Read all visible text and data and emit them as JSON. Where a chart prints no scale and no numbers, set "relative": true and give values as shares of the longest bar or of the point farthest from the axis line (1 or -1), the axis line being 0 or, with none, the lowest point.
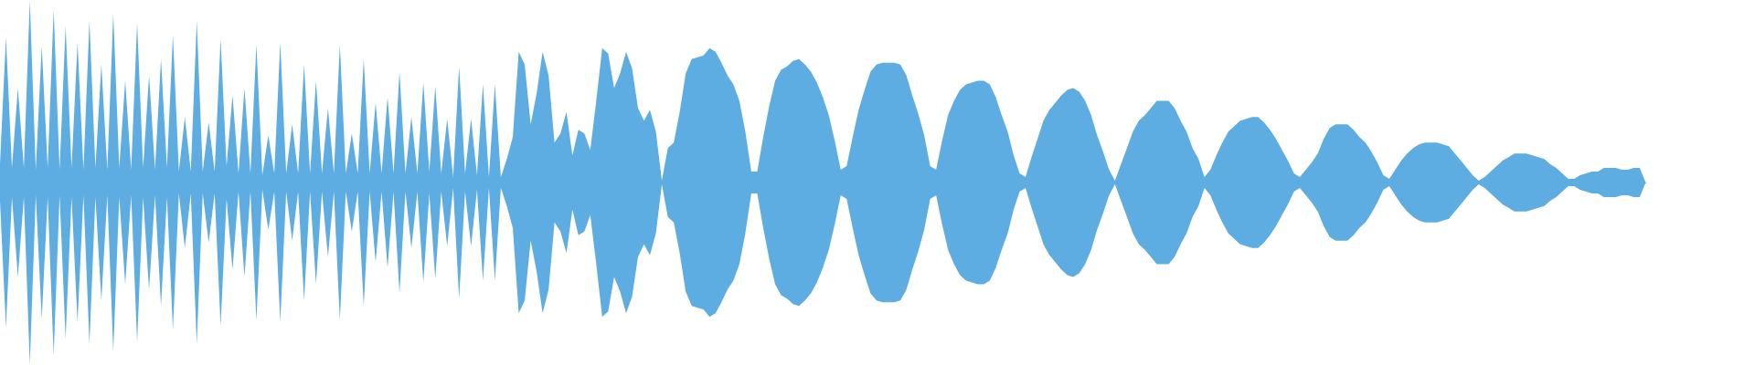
{
  "chart_data": {
    "type": "area",
    "relative": true,
    "tick_labels": false,
    "categories": [
      null,
      null,
      null,
      null,
      null,
      null,
      null,
      null,
      null,
      null,
      null,
      null,
      null,
      null,
      null,
      null,
      null,
      null,
      null,
      null,
      null,
      null,
      null,
      null,
      null,
      null,
      null,
      null,
      null,
      null,
      null,
      null,
      null,
      null,
      null,
      null,
      null,
      null,
      null,
      null,
      null,
      null,
      null,
      null,
      null,
      null,
      null,
      null,
      null,
      null,
      null,
      null,
      null,
      null,
      null,
      null,
      null,
      null,
      null,
      null,
      null,
      null,
      null,
      null,
      null,
      null,
      null,
      null,
      null,
      null,
      null,
      null,
      null,
      null,
      null,
      null,
      null,
      null,
      null,
      null,
      null,
      null,
      null,
      null,
      null,
      null,
      null,
      null,
      null,
      null,
      null,
      null,
      null,
      null,
      null,
      null,
      null,
      null,
      null,
      null,
      null,
      null,
      null,
      null,
      null,
      null,
      null,
      null,
      null,
      null,
      null,
      null,
      null,
      null,
      null,
      null,
      null,
      null,
      null,
      null,
      null,
      null,
      null,
      null,
      null,
      null,
      null,
      null,
      null,
      null,
      null,
      null,
      null,
      null,
      null,
      null,
      null,
      null,
      null,
      null,
      null,
      null,
      null,
      null,
      null,
      null,
      null,
      null,
      null,
      null,
      null,
      null,
      null,
      null,
      null,
      null,
      null,
      null,
      null,
      null,
      null,
      null,
      null,
      null,
      null,
      null,
      null,
      null,
      null,
      null,
      null,
      null,
      null,
      null,
      null,
      null,
      null,
      null,
      null,
      null,
      null,
      null,
      null,
      null,
      null,
      null,
      null,
      null,
      null,
      null,
      null,
      null,
      null,
      null,
      null,
      null,
      null,
      null,
      null,
      null,
      null,
      null,
      null,
      null,
      null,
      null,
      null,
      null,
      null,
      null,
      null,
      null,
      null,
      null,
      null,
      null,
      null,
      null,
      null,
      null,
      null,
      null,
      null,
      null,
      null,
      null,
      null,
      null,
      null,
      null,
      null,
      null,
      null,
      null,
      null,
      null,
      null,
      null,
      null,
      null,
      null,
      null,
      null,
      null,
      null,
      null,
      null,
      null,
      null,
      null,
      null,
      null,
      null,
      null,
      null,
      null,
      null,
      null,
      null,
      null,
      null,
      null,
      null,
      null,
      null,
      null,
      null,
      null,
      null,
      null,
      null,
      null,
      null,
      null,
      null,
      null,
      null
    ],
    "series": [
      {
        "color": "#5dade2",
        "values": [
          0.1,
          0.8,
          0.08,
          0.52,
          0.08,
          1.0,
          0.07,
          0.75,
          0.08,
          0.95,
          0.07,
          0.86,
          0.08,
          0.77,
          0.07,
          0.89,
          0.08,
          0.65,
          0.07,
          0.93,
          0.08,
          0.56,
          0.07,
          0.88,
          0.08,
          0.59,
          0.07,
          0.68,
          0.08,
          0.81,
          0.06,
          0.36,
          0.06,
          0.89,
          0.06,
          0.33,
          0.06,
          0.79,
          0.09,
          0.48,
          0.05,
          0.52,
          0.05,
          0.76,
          0.04,
          0.26,
          0.05,
          0.77,
          0.05,
          0.32,
          0.05,
          0.65,
          0.05,
          0.56,
          0.05,
          0.41,
          0.05,
          0.76,
          0.05,
          0.27,
          0.05,
          0.68,
          0.05,
          0.44,
          0.05,
          0.47,
          0.05,
          0.61,
          0.05,
          0.36,
          0.05,
          0.55,
          0.06,
          0.53,
          0.05,
          0.35,
          0.03,
          0.64,
          0.05,
          0.35,
          0.04,
          0.54,
          0.03,
          0.54,
          0.03,
          0.13,
          0.25,
          0.72,
          0.65,
          0.32,
          0.49,
          0.72,
          0.59,
          0.22,
          0.27,
          0.39,
          0.15,
          0.29,
          0.27,
          0.18,
          0.45,
          0.74,
          0.71,
          0.52,
          0.6,
          0.72,
          0.63,
          0.41,
          0.34,
          0.4,
          0.28,
          0.01,
          0.19,
          0.22,
          0.39,
          0.6,
          0.68,
          0.69,
          0.7,
          0.74,
          0.72,
          0.66,
          0.59,
          0.54,
          0.45,
          0.28,
          0.06,
          0.06,
          0.25,
          0.42,
          0.56,
          0.62,
          0.64,
          0.67,
          0.68,
          0.65,
          0.61,
          0.55,
          0.47,
          0.37,
          0.23,
          0.07,
          0.09,
          0.25,
          0.4,
          0.51,
          0.61,
          0.65,
          0.66,
          0.66,
          0.66,
          0.65,
          0.59,
          0.48,
          0.38,
          0.26,
          0.09,
          0.07,
          0.23,
          0.37,
          0.45,
          0.51,
          0.54,
          0.55,
          0.56,
          0.56,
          0.54,
          0.47,
          0.37,
          0.28,
          0.15,
          0.05,
          0.03,
          0.14,
          0.24,
          0.34,
          0.4,
          0.44,
          0.48,
          0.51,
          0.52,
          0.5,
          0.45,
          0.37,
          0.26,
          0.17,
          0.07,
          0.01,
          0.1,
          0.19,
          0.28,
          0.34,
          0.37,
          0.41,
          0.45,
          0.45,
          0.45,
          0.41,
          0.34,
          0.28,
          0.19,
          0.13,
          0.03,
          0.07,
          0.15,
          0.22,
          0.28,
          0.31,
          0.34,
          0.35,
          0.36,
          0.36,
          0.33,
          0.29,
          0.24,
          0.18,
          0.12,
          0.05,
          0.03,
          0.07,
          0.11,
          0.16,
          0.24,
          0.3,
          0.32,
          0.32,
          0.32,
          0.29,
          0.25,
          0.22,
          0.17,
          0.11,
          0.04,
          0.02,
          0.07,
          0.12,
          0.16,
          0.19,
          0.21,
          0.22,
          0.22,
          0.22,
          0.21,
          0.2,
          0.16,
          0.12,
          0.08,
          0.04,
          0.01,
          0.03,
          0.06,
          0.09,
          0.12,
          0.14,
          0.16,
          0.16,
          0.16,
          0.15,
          0.14,
          0.13,
          0.1,
          0.08,
          0.05,
          0.02,
          0.02,
          0.04,
          0.05,
          0.06,
          0.06,
          0.08,
          0.08,
          0.08,
          0.07,
          0.07,
          0.08,
          0.08,
          0
        ]
      },
      {
        "color": "#5dade2",
        "values": [
          -0.1,
          -0.8,
          -0.08,
          -0.52,
          -0.08,
          -1.0,
          -0.07,
          -0.75,
          -0.08,
          -0.95,
          -0.07,
          -0.86,
          -0.08,
          -0.77,
          -0.07,
          -0.89,
          -0.08,
          -0.65,
          -0.07,
          -0.93,
          -0.08,
          -0.56,
          -0.07,
          -0.88,
          -0.08,
          -0.59,
          -0.07,
          -0.68,
          -0.08,
          -0.81,
          -0.06,
          -0.36,
          -0.06,
          -0.89,
          -0.06,
          -0.33,
          -0.06,
          -0.79,
          -0.09,
          -0.48,
          -0.05,
          -0.52,
          -0.05,
          -0.76,
          -0.04,
          -0.26,
          -0.05,
          -0.77,
          -0.05,
          -0.32,
          -0.05,
          -0.65,
          -0.05,
          -0.56,
          -0.05,
          -0.41,
          -0.05,
          -0.76,
          -0.05,
          -0.27,
          -0.05,
          -0.68,
          -0.05,
          -0.44,
          -0.05,
          -0.47,
          -0.05,
          -0.61,
          -0.05,
          -0.36,
          -0.05,
          -0.55,
          -0.06,
          -0.53,
          -0.05,
          -0.35,
          -0.03,
          -0.64,
          -0.05,
          -0.35,
          -0.04,
          -0.54,
          -0.03,
          -0.54,
          -0.03,
          -0.13,
          -0.25,
          -0.72,
          -0.65,
          -0.32,
          -0.49,
          -0.72,
          -0.59,
          -0.22,
          -0.27,
          -0.39,
          -0.15,
          -0.29,
          -0.27,
          -0.18,
          -0.45,
          -0.74,
          -0.71,
          -0.52,
          -0.6,
          -0.72,
          -0.63,
          -0.41,
          -0.34,
          -0.4,
          -0.28,
          -0.01,
          -0.19,
          -0.22,
          -0.39,
          -0.6,
          -0.68,
          -0.69,
          -0.7,
          -0.74,
          -0.72,
          -0.66,
          -0.59,
          -0.54,
          -0.45,
          -0.28,
          -0.06,
          -0.06,
          -0.25,
          -0.42,
          -0.56,
          -0.62,
          -0.64,
          -0.67,
          -0.68,
          -0.65,
          -0.61,
          -0.55,
          -0.47,
          -0.37,
          -0.23,
          -0.07,
          -0.09,
          -0.25,
          -0.4,
          -0.51,
          -0.61,
          -0.65,
          -0.66,
          -0.66,
          -0.66,
          -0.65,
          -0.59,
          -0.48,
          -0.38,
          -0.26,
          -0.09,
          -0.07,
          -0.23,
          -0.37,
          -0.45,
          -0.51,
          -0.54,
          -0.55,
          -0.56,
          -0.56,
          -0.54,
          -0.47,
          -0.37,
          -0.28,
          -0.15,
          -0.05,
          -0.03,
          -0.14,
          -0.24,
          -0.34,
          -0.4,
          -0.44,
          -0.48,
          -0.51,
          -0.52,
          -0.5,
          -0.45,
          -0.37,
          -0.26,
          -0.17,
          -0.07,
          -0.01,
          -0.1,
          -0.19,
          -0.28,
          -0.34,
          -0.37,
          -0.41,
          -0.45,
          -0.45,
          -0.45,
          -0.41,
          -0.34,
          -0.28,
          -0.19,
          -0.13,
          -0.03,
          -0.07,
          -0.15,
          -0.22,
          -0.28,
          -0.31,
          -0.34,
          -0.35,
          -0.36,
          -0.36,
          -0.33,
          -0.29,
          -0.24,
          -0.18,
          -0.12,
          -0.05,
          -0.03,
          -0.07,
          -0.11,
          -0.16,
          -0.24,
          -0.3,
          -0.32,
          -0.32,
          -0.32,
          -0.29,
          -0.25,
          -0.22,
          -0.17,
          -0.11,
          -0.04,
          -0.02,
          -0.07,
          -0.12,
          -0.16,
          -0.19,
          -0.21,
          -0.22,
          -0.22,
          -0.22,
          -0.21,
          -0.2,
          -0.16,
          -0.12,
          -0.08,
          -0.04,
          -0.01,
          -0.03,
          -0.06,
          -0.09,
          -0.12,
          -0.14,
          -0.16,
          -0.16,
          -0.16,
          -0.15,
          -0.14,
          -0.13,
          -0.1,
          -0.08,
          -0.05,
          -0.02,
          -0.02,
          -0.04,
          -0.05,
          -0.06,
          -0.06,
          -0.08,
          -0.08,
          -0.08,
          -0.07,
          -0.07,
          -0.08,
          -0.08,
          0
        ]
      }
    ]
  }
}
